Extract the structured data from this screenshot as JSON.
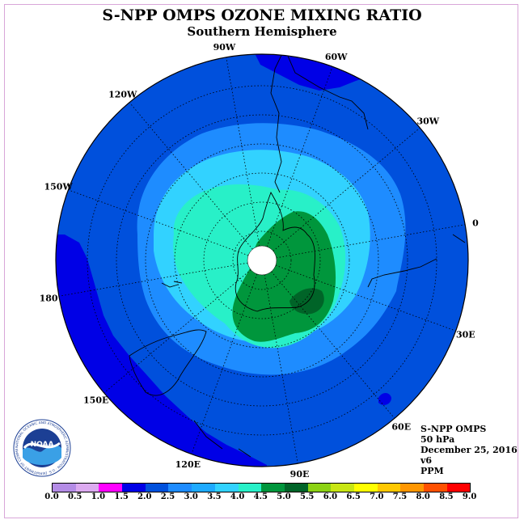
{
  "title": "S-NPP OMPS OZONE MIXING RATIO",
  "subtitle": "Southern Hemisphere",
  "longitude_labels": [
    "90W",
    "60W",
    "30W",
    "0",
    "30E",
    "60E",
    "90E",
    "120E",
    "150E",
    "180",
    "150W",
    "120W"
  ],
  "info": {
    "instrument": "S-NPP OMPS",
    "level": "50 hPa",
    "date": "December 25, 2016",
    "version": "v6",
    "units": "PPM"
  },
  "logo": {
    "text": "NOAA",
    "ring_text": "NATIONAL OCEANIC AND ATMOSPHERIC ADMINISTRATION · U.S. DEPARTMENT OF COMMERCE"
  },
  "colorbar": {
    "ticks": [
      "0.0",
      "0.5",
      "1.0",
      "1.5",
      "2.0",
      "2.5",
      "3.0",
      "3.5",
      "4.0",
      "4.5",
      "5.0",
      "5.5",
      "6.0",
      "6.5",
      "7.0",
      "7.5",
      "8.0",
      "8.5",
      "9.0"
    ],
    "colors": [
      "#b48ce6",
      "#dcaaf0",
      "#ff00ff",
      "#0000e6",
      "#0050dc",
      "#1e8cff",
      "#1eaaff",
      "#32d2ff",
      "#28f0c8",
      "#00963c",
      "#006428",
      "#8cd214",
      "#c8e614",
      "#ffff00",
      "#ffc800",
      "#ff9600",
      "#ff5000",
      "#ff0000",
      "#8c5a3c"
    ]
  },
  "map_colors": {
    "band_2_0": "#0000e6",
    "band_2_5": "#0050dc",
    "band_3_0": "#1e8cff",
    "band_3_5": "#32d2ff",
    "band_4_0": "#28f0c8",
    "band_4_5": "#00963c",
    "band_5_0": "#006428"
  }
}
